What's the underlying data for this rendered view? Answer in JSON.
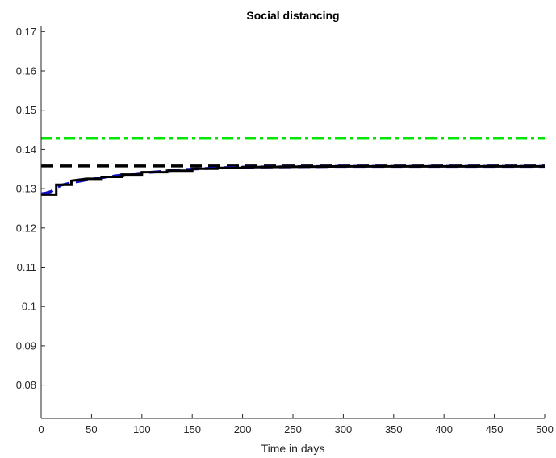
{
  "chart_data": {
    "type": "line",
    "title": "Social distancing",
    "xlabel": "Time in days",
    "ylabel": "",
    "xlim": [
      0,
      500
    ],
    "ylim": [
      0.0715,
      0.1715
    ],
    "xticks": [
      "0",
      "50",
      "100",
      "150",
      "200",
      "250",
      "300",
      "350",
      "400",
      "450",
      "500"
    ],
    "yticks": [
      "0.08",
      "0.09",
      "0.1",
      "0.11",
      "0.12",
      "0.13",
      "0.14",
      "0.15",
      "0.16",
      "0.17"
    ],
    "grid": false,
    "series": [
      {
        "color": "#00e600",
        "style": "dash-dot",
        "x": [
          0,
          500
        ],
        "y": [
          0.1428,
          0.1428
        ]
      },
      {
        "color": "#000000",
        "style": "dashed",
        "x": [
          0,
          500
        ],
        "y": [
          0.1358,
          0.1358
        ]
      },
      {
        "color": "#1010c8",
        "style": "dashed",
        "x": [
          0,
          5,
          10,
          15,
          20,
          30,
          40,
          50,
          60,
          75,
          90,
          100,
          115,
          130,
          150,
          175,
          200,
          250,
          300,
          400,
          500
        ],
        "y": [
          0.1287,
          0.1289,
          0.1293,
          0.1302,
          0.1309,
          0.1315,
          0.132,
          0.1325,
          0.1328,
          0.1333,
          0.1337,
          0.134,
          0.1343,
          0.1347,
          0.135,
          0.1353,
          0.1355,
          0.1356,
          0.1357,
          0.1357,
          0.1357
        ]
      },
      {
        "color": "#000000",
        "style": "solid",
        "x": [
          0,
          15,
          15,
          30,
          30,
          45,
          60,
          60,
          80,
          80,
          100,
          100,
          125,
          125,
          150,
          150,
          175,
          175,
          200,
          200,
          250,
          300,
          400,
          500
        ],
        "y": [
          0.1285,
          0.1285,
          0.131,
          0.131,
          0.132,
          0.1325,
          0.1325,
          0.133,
          0.133,
          0.1336,
          0.1336,
          0.1342,
          0.1342,
          0.1346,
          0.1346,
          0.1351,
          0.1351,
          0.1353,
          0.1353,
          0.1355,
          0.1356,
          0.1357,
          0.1357,
          0.1357
        ]
      }
    ]
  }
}
